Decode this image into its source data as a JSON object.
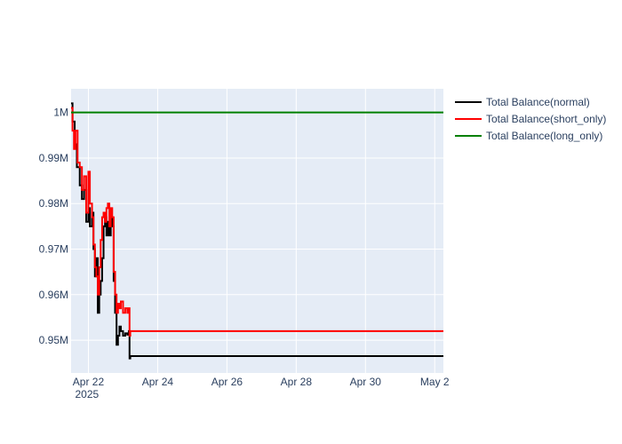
{
  "chart_data": {
    "type": "line",
    "title": "",
    "xlabel": "",
    "ylabel": "",
    "grid": true,
    "legend_position": "top-right",
    "xlim": [
      "2025-04-21 12:00",
      "2025-05-02 06:00"
    ],
    "ylim": [
      942800,
      1005200
    ],
    "x_ticks": [
      {
        "value": "2025-04-22",
        "label": "Apr 22",
        "sublabel": "2025"
      },
      {
        "value": "2025-04-24",
        "label": "Apr 24"
      },
      {
        "value": "2025-04-26",
        "label": "Apr 26"
      },
      {
        "value": "2025-04-28",
        "label": "Apr 28"
      },
      {
        "value": "2025-04-30",
        "label": "Apr 30"
      },
      {
        "value": "2025-05-02",
        "label": "May 2"
      }
    ],
    "y_ticks": [
      {
        "value": 950000,
        "label": "0.95M"
      },
      {
        "value": 960000,
        "label": "0.96M"
      },
      {
        "value": 970000,
        "label": "0.97M"
      },
      {
        "value": 980000,
        "label": "0.98M"
      },
      {
        "value": 990000,
        "label": "0.99M"
      },
      {
        "value": 1000000,
        "label": "1M"
      }
    ],
    "series": [
      {
        "name": "Total Balance(normal)",
        "color": "#000000",
        "points": [
          [
            "2025-04-21 12:00",
            1002000
          ],
          [
            "2025-04-21 13:00",
            998000
          ],
          [
            "2025-04-21 14:30",
            993000
          ],
          [
            "2025-04-21 16:00",
            988000
          ],
          [
            "2025-04-21 18:00",
            984000
          ],
          [
            "2025-04-21 19:30",
            981000
          ],
          [
            "2025-04-21 21:00",
            983000
          ],
          [
            "2025-04-21 22:30",
            976000
          ],
          [
            "2025-04-22 00:00",
            979000
          ],
          [
            "2025-04-22 01:00",
            975000
          ],
          [
            "2025-04-22 02:30",
            978000
          ],
          [
            "2025-04-22 03:30",
            970000
          ],
          [
            "2025-04-22 04:30",
            964000
          ],
          [
            "2025-04-22 05:30",
            968000
          ],
          [
            "2025-04-22 06:30",
            956000
          ],
          [
            "2025-04-22 07:30",
            960000
          ],
          [
            "2025-04-22 08:30",
            963000
          ],
          [
            "2025-04-22 09:30",
            968000
          ],
          [
            "2025-04-22 10:30",
            975000
          ],
          [
            "2025-04-22 11:30",
            977000
          ],
          [
            "2025-04-22 12:30",
            973000
          ],
          [
            "2025-04-22 13:30",
            976000
          ],
          [
            "2025-04-22 14:30",
            973000
          ],
          [
            "2025-04-22 15:30",
            977000
          ],
          [
            "2025-04-22 16:30",
            975000
          ],
          [
            "2025-04-22 17:30",
            963000
          ],
          [
            "2025-04-22 18:30",
            956000
          ],
          [
            "2025-04-22 19:30",
            949000
          ],
          [
            "2025-04-22 20:30",
            951000
          ],
          [
            "2025-04-22 21:30",
            953000
          ],
          [
            "2025-04-22 22:30",
            952000
          ],
          [
            "2025-04-23 00:00",
            951000
          ],
          [
            "2025-04-23 01:30",
            951500
          ],
          [
            "2025-04-23 03:00",
            951200
          ],
          [
            "2025-04-23 04:00",
            952000
          ],
          [
            "2025-04-23 04:30",
            946000
          ],
          [
            "2025-04-23 05:00",
            946500
          ],
          [
            "2025-05-02 06:00",
            946500
          ]
        ]
      },
      {
        "name": "Total Balance(short_only)",
        "color": "#ff0000",
        "points": [
          [
            "2025-04-21 12:00",
            1001000
          ],
          [
            "2025-04-21 13:00",
            996000
          ],
          [
            "2025-04-21 14:00",
            992000
          ],
          [
            "2025-04-21 15:00",
            996000
          ],
          [
            "2025-04-21 16:30",
            989000
          ],
          [
            "2025-04-21 18:00",
            988000
          ],
          [
            "2025-04-21 19:30",
            983000
          ],
          [
            "2025-04-21 21:00",
            986000
          ],
          [
            "2025-04-21 22:30",
            978000
          ],
          [
            "2025-04-22 00:00",
            987000
          ],
          [
            "2025-04-22 01:00",
            980000
          ],
          [
            "2025-04-22 02:30",
            977000
          ],
          [
            "2025-04-22 03:30",
            971000
          ],
          [
            "2025-04-22 04:30",
            966000
          ],
          [
            "2025-04-22 05:30",
            964000
          ],
          [
            "2025-04-22 06:30",
            960000
          ],
          [
            "2025-04-22 07:30",
            966000
          ],
          [
            "2025-04-22 08:30",
            972000
          ],
          [
            "2025-04-22 09:30",
            977000
          ],
          [
            "2025-04-22 10:30",
            978000
          ],
          [
            "2025-04-22 11:30",
            976000
          ],
          [
            "2025-04-22 12:30",
            979000
          ],
          [
            "2025-04-22 13:30",
            980000
          ],
          [
            "2025-04-22 14:30",
            975000
          ],
          [
            "2025-04-22 15:30",
            979000
          ],
          [
            "2025-04-22 16:30",
            977000
          ],
          [
            "2025-04-22 17:30",
            965000
          ],
          [
            "2025-04-22 18:30",
            960000
          ],
          [
            "2025-04-22 19:30",
            956000
          ],
          [
            "2025-04-22 20:30",
            958000
          ],
          [
            "2025-04-22 21:30",
            957000
          ],
          [
            "2025-04-22 22:30",
            958500
          ],
          [
            "2025-04-23 00:00",
            956000
          ],
          [
            "2025-04-23 01:30",
            957000
          ],
          [
            "2025-04-23 03:00",
            956000
          ],
          [
            "2025-04-23 04:00",
            957000
          ],
          [
            "2025-04-23 04:30",
            951000
          ],
          [
            "2025-04-23 05:00",
            952000
          ],
          [
            "2025-05-02 06:00",
            952000
          ]
        ]
      },
      {
        "name": "Total Balance(long_only)",
        "color": "#008000",
        "points": [
          [
            "2025-04-21 12:00",
            1000000
          ],
          [
            "2025-05-02 06:00",
            1000000
          ]
        ]
      }
    ]
  }
}
